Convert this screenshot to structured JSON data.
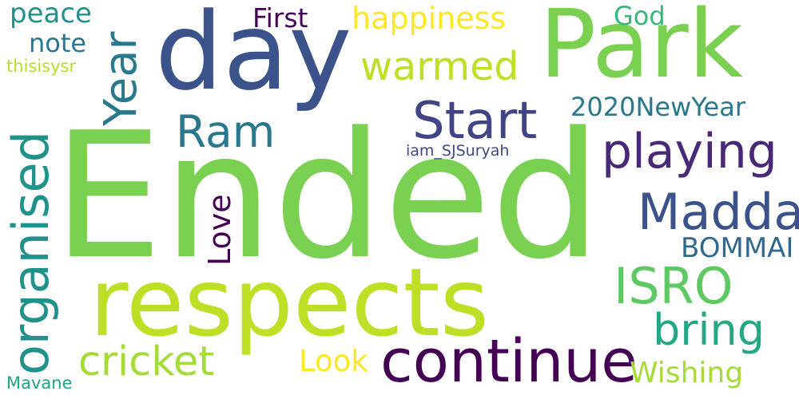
{
  "words": [
    {
      "text": "Ended",
      "color": "#7ad151"
    },
    {
      "text": "respects",
      "color": "#bddf26"
    },
    {
      "text": "day",
      "color": "#3b528b"
    },
    {
      "text": "Park",
      "color": "#7ad151"
    },
    {
      "text": "continue",
      "color": "#440154"
    },
    {
      "text": "organised",
      "color": "#21918c"
    },
    {
      "text": "Start",
      "color": "#414487"
    },
    {
      "text": "Madda",
      "color": "#3b528b"
    },
    {
      "text": "ISRO",
      "color": "#5ec962"
    },
    {
      "text": "playing",
      "color": "#482878"
    },
    {
      "text": "Year",
      "color": "#2a788e"
    },
    {
      "text": "Ram",
      "color": "#2a788e"
    },
    {
      "text": "warmed",
      "color": "#bddf26"
    },
    {
      "text": "bring",
      "color": "#22a884"
    },
    {
      "text": "cricket",
      "color": "#a5db36"
    },
    {
      "text": "happiness",
      "color": "#fde725"
    },
    {
      "text": "BOMMAI",
      "color": "#31688e"
    },
    {
      "text": "2020NewYear",
      "color": "#2a788e"
    },
    {
      "text": "Love",
      "color": "#440154"
    },
    {
      "text": "Wishing",
      "color": "#a5db36"
    },
    {
      "text": "Look",
      "color": "#fde725"
    },
    {
      "text": "First",
      "color": "#440154"
    },
    {
      "text": "God",
      "color": "#35b779"
    },
    {
      "text": "peace",
      "color": "#21918c"
    },
    {
      "text": "note",
      "color": "#2a788e"
    },
    {
      "text": "iam_SJSuryah",
      "color": "#3e4989"
    },
    {
      "text": "thisisysr",
      "color": "#b5de2b"
    },
    {
      "text": "Mavane",
      "color": "#20a386"
    }
  ]
}
